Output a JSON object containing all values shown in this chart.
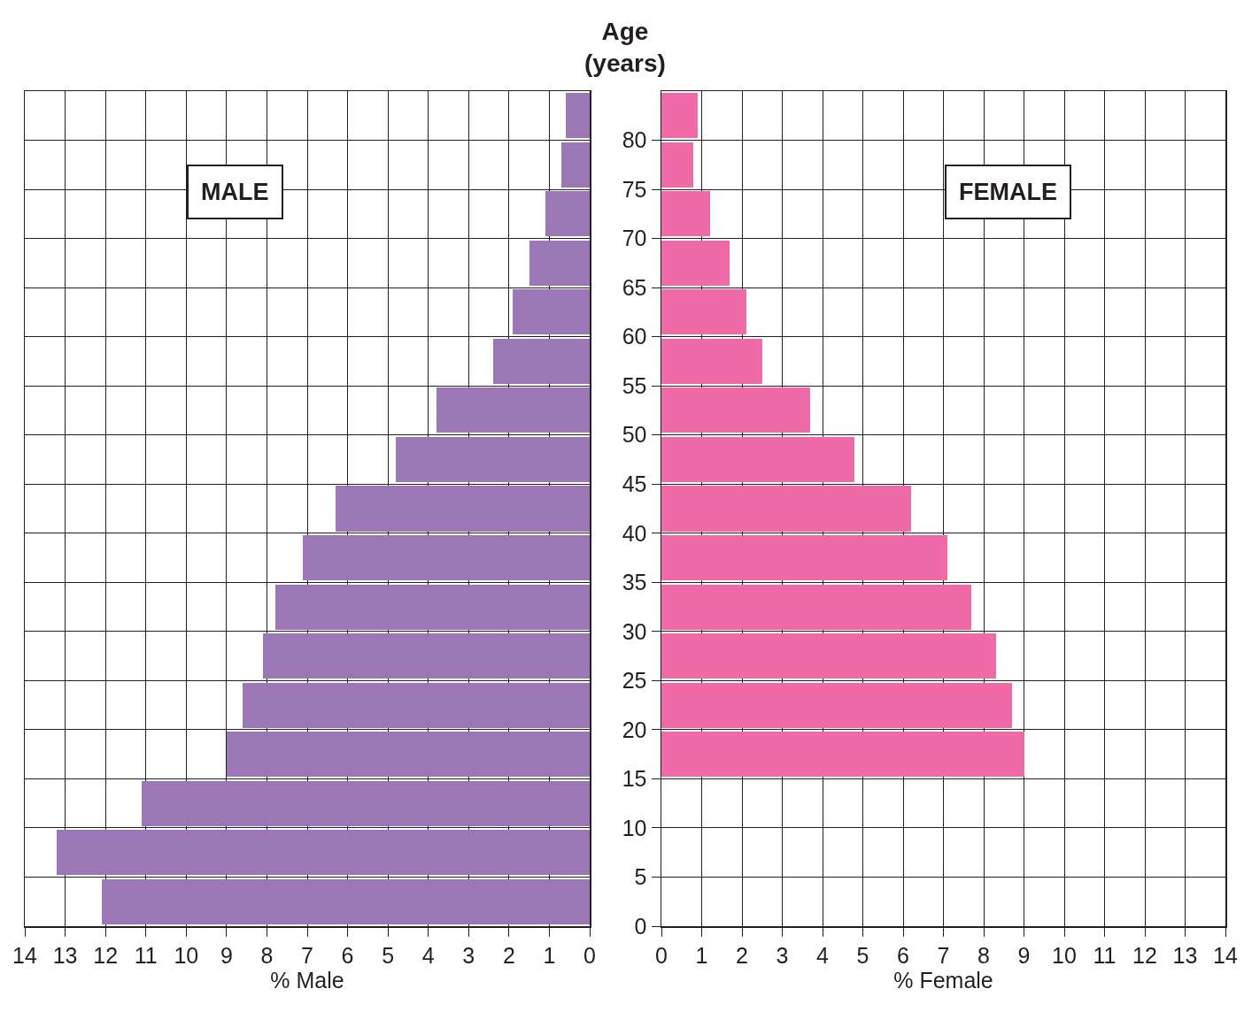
{
  "chart_data": [
    {
      "type": "bar",
      "orientation": "horizontal",
      "xlabel": "% Male",
      "annotations": [
        "MALE"
      ],
      "x": [
        2.5,
        7.5,
        12.5,
        17.5,
        22.5,
        27.5,
        32.5,
        37.5,
        42.5,
        47.5,
        52.5,
        57.5,
        62.5,
        67.5,
        72.5,
        77.5,
        82.5
      ],
      "series": [
        {
          "color": "#9b77b5",
          "values": [
            12.1,
            13.2,
            11.1,
            9.0,
            8.6,
            8.1,
            7.8,
            7.1,
            6.3,
            4.8,
            3.8,
            2.4,
            1.9,
            1.5,
            1.1,
            0.7,
            0.6
          ]
        }
      ],
      "xlim": [
        14,
        0
      ],
      "xticks": [
        14,
        13,
        12,
        11,
        10,
        9,
        8,
        7,
        6,
        5,
        4,
        3,
        2,
        1,
        0
      ],
      "ylim": [
        0,
        85
      ],
      "yticks": [
        0,
        5,
        10,
        15,
        20,
        25,
        30,
        35,
        40,
        45,
        50,
        55,
        60,
        65,
        70,
        75,
        80
      ],
      "grid": true,
      "tick_labels": "x"
    },
    {
      "type": "bar",
      "orientation": "horizontal",
      "xlabel": "% Female",
      "ylabel": "Age\n(years)",
      "annotations": [
        "FEMALE"
      ],
      "series": [
        {
          "color": "#f06aa8",
          "x": [
            17.5,
            22.5,
            27.5,
            32.5,
            37.5,
            42.5,
            47.5,
            52.5,
            57.5,
            62.5,
            67.5,
            72.5,
            77.5,
            82.5
          ],
          "values": [
            9.0,
            8.7,
            8.3,
            7.7,
            7.1,
            6.2,
            4.8,
            3.7,
            2.5,
            2.1,
            1.7,
            1.2,
            0.8,
            0.9
          ]
        }
      ],
      "xlim": [
        0,
        14
      ],
      "xticks": [
        0,
        1,
        2,
        3,
        4,
        5,
        6,
        7,
        8,
        9,
        10,
        11,
        12,
        13,
        14
      ],
      "ylim": [
        0,
        85
      ],
      "yticks": [
        0,
        5,
        10,
        15,
        20,
        25,
        30,
        35,
        40,
        45,
        50,
        55,
        60,
        65,
        70,
        75,
        80
      ],
      "grid": true
    }
  ]
}
